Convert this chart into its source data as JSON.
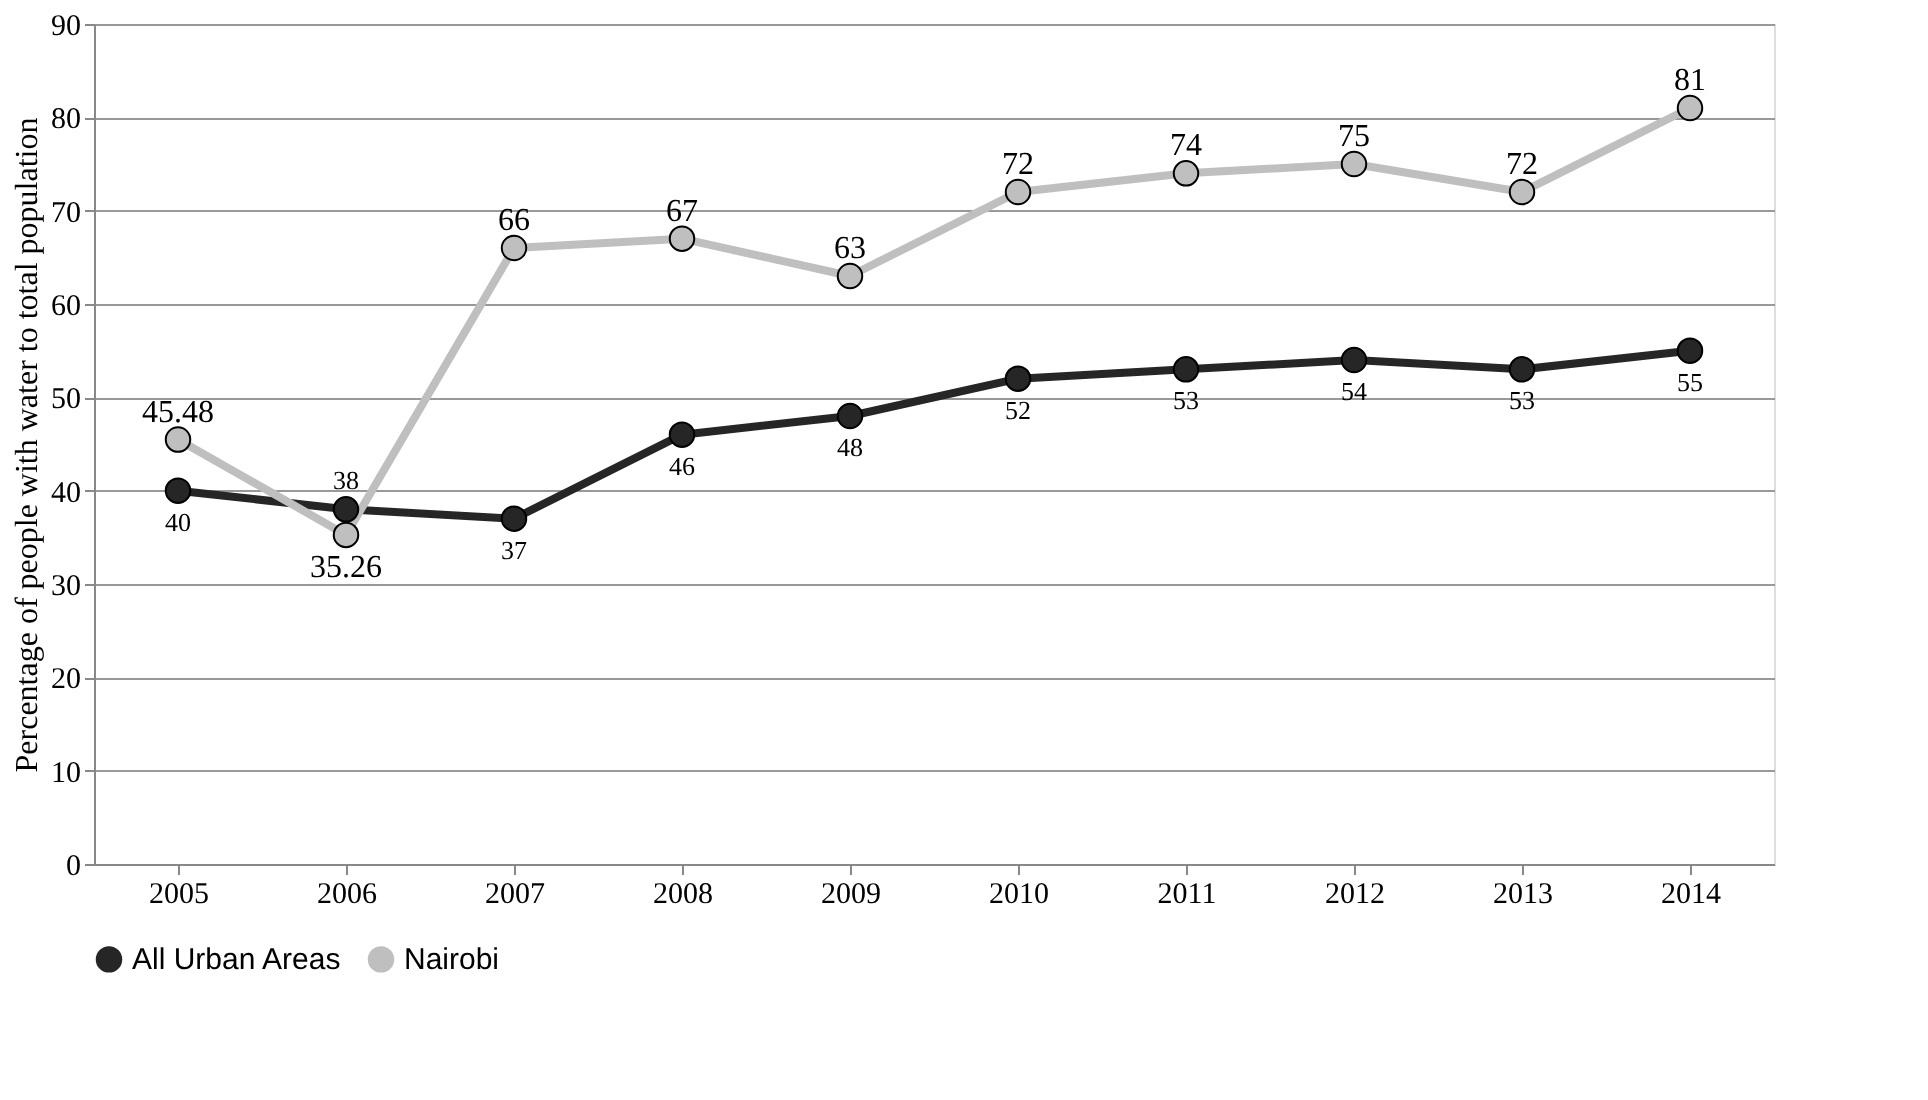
{
  "chart_data": {
    "type": "line",
    "ylabel": "Percentage of people with water to total population",
    "categories": [
      "2005",
      "2006",
      "2007",
      "2008",
      "2009",
      "2010",
      "2011",
      "2012",
      "2013",
      "2014"
    ],
    "series": [
      {
        "name": "All Urban Areas",
        "color": "#262626",
        "values": [
          40,
          38,
          37,
          46,
          48,
          52,
          53,
          54,
          53,
          55
        ]
      },
      {
        "name": "Nairobi",
        "color": "#bfbfbf",
        "values": [
          45.48,
          35.26,
          66,
          67,
          63,
          72,
          74,
          75,
          72,
          81
        ]
      }
    ],
    "ylim": [
      0,
      90
    ],
    "yticks": [
      0,
      10,
      20,
      30,
      40,
      50,
      60,
      70,
      80,
      90
    ],
    "grid": "y",
    "legend": "bottom",
    "marker": "circle",
    "line_style": "solid",
    "data_labels": true
  }
}
